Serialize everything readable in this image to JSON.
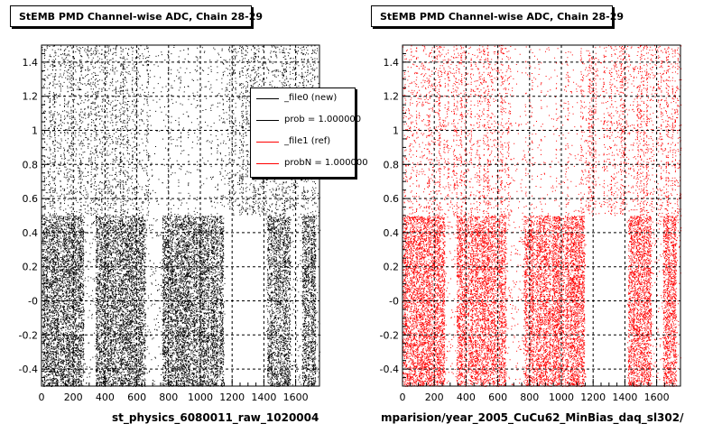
{
  "chart_data": [
    {
      "type": "scatter",
      "title": "StEMB PMD Channel-wise ADC, Chain 28-29",
      "xlabel": "st_physics_6080011_raw_1020004",
      "ylabel": "",
      "xlim": [
        0,
        1750
      ],
      "ylim": [
        -0.5,
        1.5
      ],
      "x_ticks": [
        "0",
        "200",
        "400",
        "600",
        "800",
        "1000",
        "1200",
        "1400",
        "1600"
      ],
      "y_ticks": [
        "-0.4",
        "-0.2",
        "-0",
        "0.2",
        "0.4",
        "0.6",
        "0.8",
        "1",
        "1.2",
        "1.4"
      ],
      "grid": true,
      "color": "#000000",
      "series": [
        {
          "name": "_file0 (new)",
          "channel_x_range": [
            0,
            1750
          ],
          "y_range": [
            -0.5,
            1.5
          ]
        }
      ],
      "dense_bands": [
        [
          0,
          260
        ],
        [
          340,
          650
        ],
        [
          760,
          1140
        ],
        [
          1420,
          1560
        ],
        [
          1640,
          1720
        ]
      ],
      "gap_bands_lower": [
        [
          1150,
          1410
        ]
      ],
      "legend": {
        "placement": "top-right",
        "entries": [
          {
            "label": "_file0 (new)",
            "color": "#000000"
          },
          {
            "label": "prob = 1.000000",
            "color": "#000000"
          },
          {
            "label": "_file1 (ref)",
            "color": "#ff0000"
          },
          {
            "label": "probN = 1.000000",
            "color": "#ff0000"
          }
        ]
      }
    },
    {
      "type": "scatter",
      "title": "StEMB PMD Channel-wise ADC, Chain 28-29",
      "xlabel": "mparision/year_2005_CuCu62_MinBias_daq_sl302/",
      "ylabel": "",
      "xlim": [
        0,
        1750
      ],
      "ylim": [
        -0.5,
        1.5
      ],
      "x_ticks": [
        "0",
        "200",
        "400",
        "600",
        "800",
        "1000",
        "1200",
        "1400",
        "1600"
      ],
      "y_ticks": [
        "-0.4",
        "-0.2",
        "-0",
        "0.2",
        "0.4",
        "0.6",
        "0.8",
        "1",
        "1.2",
        "1.4"
      ],
      "grid": true,
      "color": "#ff0000",
      "series": [
        {
          "name": "_file1 (ref)",
          "channel_x_range": [
            0,
            1750
          ],
          "y_range": [
            -0.5,
            1.5
          ]
        }
      ],
      "dense_bands": [
        [
          0,
          260
        ],
        [
          340,
          650
        ],
        [
          760,
          1140
        ],
        [
          1420,
          1560
        ],
        [
          1640,
          1720
        ]
      ],
      "gap_bands_lower": [
        [
          1150,
          1410
        ]
      ]
    }
  ]
}
